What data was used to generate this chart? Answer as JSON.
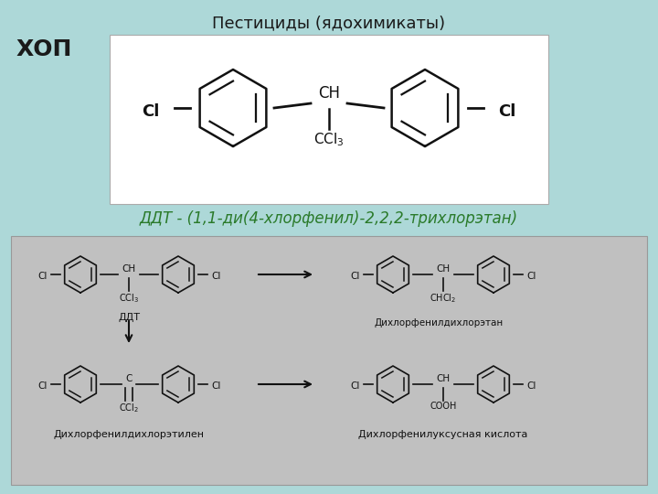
{
  "background_color": "#add8d8",
  "title": "Пестициды (ядохимикаты)",
  "title_fontsize": 13,
  "title_color": "#1a1a1a",
  "hop_label": "ХОП",
  "hop_fontsize": 18,
  "ddt_label": "ДДТ - (1,1-ди(4-хлорфенил)-2,2,2-трихлорэтан)",
  "ddt_fontsize": 12,
  "ddt_color": "#2a7a2a",
  "top_image_bg": "#ffffff",
  "bottom_box_bg": "#c0c0c0",
  "label_ddt_box": "ДДТ",
  "label_dde": "Дихлорфенилдихлорэтилен",
  "label_ddd": "Дихлорфенилдихлорэтан",
  "label_dda": "Дихлорфенилуксусная кислота",
  "sub_label_fontsize": 8.5,
  "sub_label_color": "#111111",
  "arrow_color": "#111111"
}
